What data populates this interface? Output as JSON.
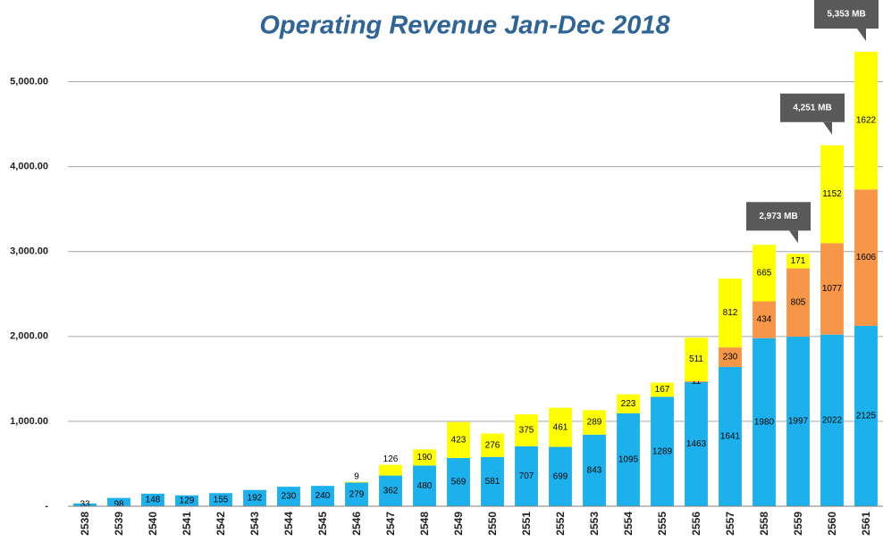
{
  "chart_data": {
    "type": "stacked_bar",
    "title": "Operating Revenue Jan-Dec 2018",
    "categories": [
      "2538",
      "2539",
      "2540",
      "2541",
      "2542",
      "2543",
      "2544",
      "2545",
      "2546",
      "2547",
      "2548",
      "2549",
      "2550",
      "2551",
      "2552",
      "2553",
      "2554",
      "2555",
      "2556",
      "2557",
      "2558",
      "2559",
      "2560",
      "2561"
    ],
    "series": [
      {
        "color": "#1cb1ec",
        "values": [
          33,
          98,
          148,
          129,
          155,
          192,
          230,
          240,
          279,
          362,
          480,
          569,
          581,
          707,
          699,
          843,
          1095,
          1289,
          1463,
          1641,
          1980,
          1997,
          2022,
          2125
        ]
      },
      {
        "color": "#f79646",
        "values": [
          null,
          null,
          null,
          null,
          null,
          null,
          null,
          null,
          null,
          null,
          null,
          null,
          null,
          null,
          null,
          null,
          null,
          null,
          11,
          230,
          434,
          805,
          1077,
          1606
        ]
      },
      {
        "color": "#ffff00",
        "values": [
          null,
          null,
          null,
          null,
          null,
          null,
          null,
          null,
          9,
          126,
          190,
          423,
          276,
          375,
          461,
          289,
          223,
          167,
          511,
          812,
          665,
          171,
          1152,
          1622
        ]
      }
    ],
    "ylim": [
      0,
      5500
    ],
    "yticks": [
      {
        "value": 0,
        "label": "-"
      },
      {
        "value": 1000,
        "label": "1,000.00"
      },
      {
        "value": 2000,
        "label": "2,000.00"
      },
      {
        "value": 3000,
        "label": "3,000.00"
      },
      {
        "value": 4000,
        "label": "4,000.00"
      },
      {
        "value": 5000,
        "label": "5,000.00"
      }
    ],
    "grid": true,
    "annotations": [
      {
        "text": "2,973 MB",
        "category": "2559"
      },
      {
        "text": "4,251 MB",
        "category": "2560"
      },
      {
        "text": "5,353 MB",
        "category": "2561"
      }
    ]
  }
}
